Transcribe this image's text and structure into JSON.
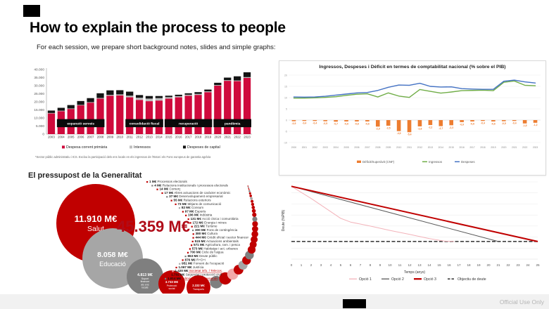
{
  "slide": {
    "title": "How to explain the process to people",
    "subtitle": "For each session, we prepare short background notes, slides and simple graphs:",
    "footer": "Official Use Only"
  },
  "colors": {
    "bar_red": "#cf0a3c",
    "interest_gray": "#bfbfbf",
    "capital_black": "#141414",
    "deficit_orange": "#ED7D31",
    "ingressos_green": "#70AD47",
    "despeses_blue": "#4472C4",
    "bubble_red": "#c00000",
    "bubble_gray": "#a6a6a6",
    "bubble_darkgray": "#7f7f7f",
    "bubble_pink": "#f2a9a9",
    "objective_gray": "#404040",
    "total_red": "#b00c18"
  },
  "chart_data": [
    {
      "type": "bar",
      "variant": "stacked",
      "categories": [
        "2003",
        "2004",
        "2005",
        "2006",
        "2007",
        "2008",
        "2009",
        "2010",
        "2011",
        "2012",
        "2013",
        "2014",
        "2015",
        "2016",
        "2017",
        "2018",
        "2019",
        "2020",
        "2021",
        "2022",
        "2023"
      ],
      "series": [
        {
          "name": "Despesa corrent primària",
          "color": "#cf0a3c",
          "values": [
            12800,
            14200,
            15600,
            17800,
            19500,
            22000,
            23800,
            24000,
            22800,
            21200,
            20400,
            20800,
            22000,
            22800,
            23800,
            24300,
            26000,
            30000,
            33000,
            32800,
            34800
          ]
        },
        {
          "name": "Interessos",
          "color": "#bfbfbf",
          "values": [
            300,
            300,
            300,
            300,
            300,
            400,
            500,
            600,
            1000,
            1300,
            1600,
            1500,
            900,
            700,
            600,
            600,
            500,
            400,
            400,
            400,
            500
          ]
        },
        {
          "name": "Despeses de capital",
          "color": "#141414",
          "values": [
            1500,
            1800,
            2100,
            2400,
            2500,
            2900,
            2800,
            2600,
            2500,
            1700,
            1600,
            1300,
            900,
            900,
            900,
            1100,
            1100,
            1400,
            1600,
            2600,
            3000
          ]
        }
      ],
      "ylim": [
        0,
        40000
      ],
      "yticks": [
        "0",
        "5.000",
        "10.000",
        "15.000",
        "20.000",
        "25.000",
        "30.000",
        "35.000",
        "40.000"
      ],
      "period_bands": [
        {
          "label": "expansió serveis",
          "from": "2004",
          "to": "2008"
        },
        {
          "label": "consolidació fiscal",
          "from": "2011",
          "to": "2014"
        },
        {
          "label": "recuperació",
          "from": "2015",
          "to": "2019"
        },
        {
          "label": "pandèmia",
          "from": "2020",
          "to": "2023"
        }
      ],
      "legend": [
        "Despesa corrent primària",
        "Interessos",
        "Despeses de capital"
      ],
      "footnote": "*Sector públic administratiu i ICS. Exclou la participació dels ens locals en els ingressos de l'Estat i els Fons europeus de garantia agrària"
    },
    {
      "type": "line",
      "title": "Ingressos, Despeses i Dèficit en termes de comptabilitat nacional (% sobre el PIB)",
      "x": [
        "2000",
        "2001",
        "2002",
        "2003",
        "2004",
        "2005",
        "2006",
        "2007",
        "2008",
        "2009",
        "2010",
        "2011",
        "2012",
        "2013",
        "2014",
        "2015",
        "2016",
        "2017",
        "2018",
        "2019",
        "2020",
        "2021",
        "2022",
        "2023"
      ],
      "ylim": [
        -10,
        20
      ],
      "yticks": [
        20,
        15,
        10,
        5,
        0,
        -5,
        -10
      ],
      "series": [
        {
          "name": "Dèficit/Superàvit (CNF)",
          "kind": "bar",
          "color": "#ED7D31",
          "data_labels": true,
          "values": [
            -0.5,
            -0.4,
            -0.4,
            -0.5,
            -0.7,
            -0.6,
            -0.6,
            -0.6,
            -2.9,
            -2.5,
            -4.9,
            -5.4,
            -2.8,
            -2.2,
            -2.7,
            -2.3,
            -0.9,
            -0.6,
            -0.4,
            -0.6,
            -0.5,
            -0.4,
            -1.5,
            -1.2
          ]
        },
        {
          "name": "Ingressos",
          "kind": "line",
          "color": "#70AD47",
          "values": [
            9.8,
            9.8,
            9.9,
            10.1,
            10.4,
            11.0,
            11.5,
            11.7,
            10.3,
            12.1,
            10.7,
            10.1,
            13.6,
            12.8,
            12.0,
            12.5,
            13.1,
            13.2,
            13.3,
            13.1,
            16.8,
            17.4,
            15.5,
            15.3
          ]
        },
        {
          "name": "Despeses",
          "kind": "line",
          "color": "#4472C4",
          "values": [
            10.3,
            10.2,
            10.3,
            10.6,
            11.1,
            11.6,
            12.1,
            12.3,
            13.2,
            14.6,
            15.6,
            15.5,
            16.4,
            15.0,
            14.7,
            14.8,
            14.0,
            13.8,
            13.7,
            13.7,
            17.3,
            17.8,
            17.0,
            16.5
          ]
        }
      ],
      "legend": [
        "Dèficit/Superàvit (CNF)",
        "Ingressos",
        "Despeses"
      ]
    },
    {
      "type": "bubble",
      "title": "El pressupost de la Generalitat",
      "total_label": "45.359 M€",
      "bubbles": [
        {
          "value_label": "11.910 M€",
          "label": "Salut",
          "color": "#c00000"
        },
        {
          "value_label": "8.058 M€",
          "label": "Educació",
          "color": "#a6a6a6"
        },
        {
          "value_label": "4.813 M€",
          "label": "Suport financer als ens locals",
          "color": "#7f7f7f"
        },
        {
          "value_label": "3.733 M€",
          "label": "Protecció social",
          "color": "#c00000"
        },
        {
          "value_label": "2.332 M€",
          "label": "Transports",
          "color": "#c00000"
        }
      ],
      "items": [
        {
          "value_label": "1 M€",
          "label": "Processos electorals",
          "color": "#c00000"
        },
        {
          "value_label": "4 M€",
          "label": "Relacions institucionals i processos electorals",
          "color": "#7f7f7f"
        },
        {
          "value_label": "14 M€",
          "label": "Comerç",
          "color": "#c00000"
        },
        {
          "value_label": "17 M€",
          "label": "Altres actuacions de caràcter econòmic",
          "color": "#c00000"
        },
        {
          "value_label": "37 M€",
          "label": "Desenvolupament empresarial",
          "color": "#7f7f7f"
        },
        {
          "value_label": "55 M€",
          "label": "Relacions exteriors",
          "color": "#c00000"
        },
        {
          "value_label": "73 M€",
          "label": "Mitjans de comunicació",
          "color": "#c00000"
        },
        {
          "value_label": "82 M€",
          "label": "Consum",
          "color": "#a6a6a6"
        },
        {
          "value_label": "97 M€",
          "label": "Esports",
          "color": "#c00000"
        },
        {
          "value_label": "106 M€",
          "label": "Indústria",
          "color": "#c00000"
        },
        {
          "value_label": "131 M€",
          "label": "Acció cívica i comunitària",
          "color": "#c00000"
        },
        {
          "value_label": "172 M€",
          "label": "Energia i mines",
          "color": "#c00000"
        },
        {
          "value_label": "221 M€",
          "label": "Turisme",
          "color": "#c00000"
        },
        {
          "value_label": "300 M€",
          "label": "Fons de contingència",
          "color": "#7f7f7f"
        },
        {
          "value_label": "380 M€",
          "label": "Cultura",
          "color": "#c00000"
        },
        {
          "value_label": "444 M€",
          "label": "Crèdit oficial i sector financer",
          "color": "#c00000"
        },
        {
          "value_label": "515 M€",
          "label": "Actuacions ambientals",
          "color": "#c00000"
        },
        {
          "value_label": "571 M€",
          "label": "Agricultura, ram. i pesca",
          "color": "#c00000"
        },
        {
          "value_label": "573 M€",
          "label": "Habitatge i act. urbanes",
          "color": "#c00000"
        },
        {
          "value_label": "700 M€",
          "label": "Cicle de l'aigua",
          "color": "#c00000"
        },
        {
          "value_label": "863 M€",
          "label": "Deute públic",
          "color": "#7f7f7f"
        },
        {
          "value_label": "876 M€",
          "label": "R+D+i",
          "color": "#c00000"
        },
        {
          "value_label": "951 M€",
          "label": "Foment de l'ocupació",
          "color": "#a6a6a6"
        },
        {
          "value_label": "1.067 M€",
          "label": "Justícia",
          "color": "#c00000"
        },
        {
          "value_label": "1.420 M€",
          "label": "Societat info. / Telecos.",
          "color": "#f2a9a9",
          "link": true
        },
        {
          "value_label": "1.732 M€",
          "label": "Seguretat i protecció civil",
          "color": "#c00000"
        },
        {
          "value_label": "1.814 M€",
          "label": "Admin. i serveis generals",
          "color": "#7f7f7f",
          "link": true
        }
      ]
    },
    {
      "type": "line",
      "xlabel": "Temps (anys)",
      "ylabel": "Deute (%PIB)",
      "xticks": [
        0,
        1,
        2,
        3,
        4,
        5,
        6,
        7,
        8,
        9,
        10,
        11,
        12,
        13,
        14,
        15,
        16,
        17,
        18,
        19,
        20,
        21,
        22,
        23,
        24,
        25
      ],
      "ylim": [
        0,
        35
      ],
      "objective": {
        "label": "Objectiu de deute",
        "value": 8,
        "style": "dashed",
        "color": "#404040"
      },
      "series": [
        {
          "name": "Opció 1",
          "color": "#f3b3ba",
          "width": 1,
          "points": [
            [
              0,
              33
            ],
            [
              2,
              27.5
            ],
            [
              4,
              21.5
            ],
            [
              5,
              18.5
            ],
            [
              6,
              16.8
            ],
            [
              8,
              15
            ],
            [
              10,
              13
            ],
            [
              12,
              11.2
            ],
            [
              14,
              9.3
            ],
            [
              15.5,
              8.2
            ],
            [
              16.5,
              8
            ]
          ]
        },
        {
          "name": "Opció 2",
          "color": "#595959",
          "width": 1,
          "points": [
            [
              0,
              33
            ],
            [
              21,
              8
            ]
          ]
        },
        {
          "name": "Opció 3",
          "color": "#c00000",
          "width": 2,
          "points": [
            [
              0,
              33
            ],
            [
              25,
              8
            ]
          ]
        }
      ],
      "legend": [
        "Opció 1",
        "Opció 2",
        "Opció 3",
        "Objectiu de deute"
      ]
    }
  ]
}
